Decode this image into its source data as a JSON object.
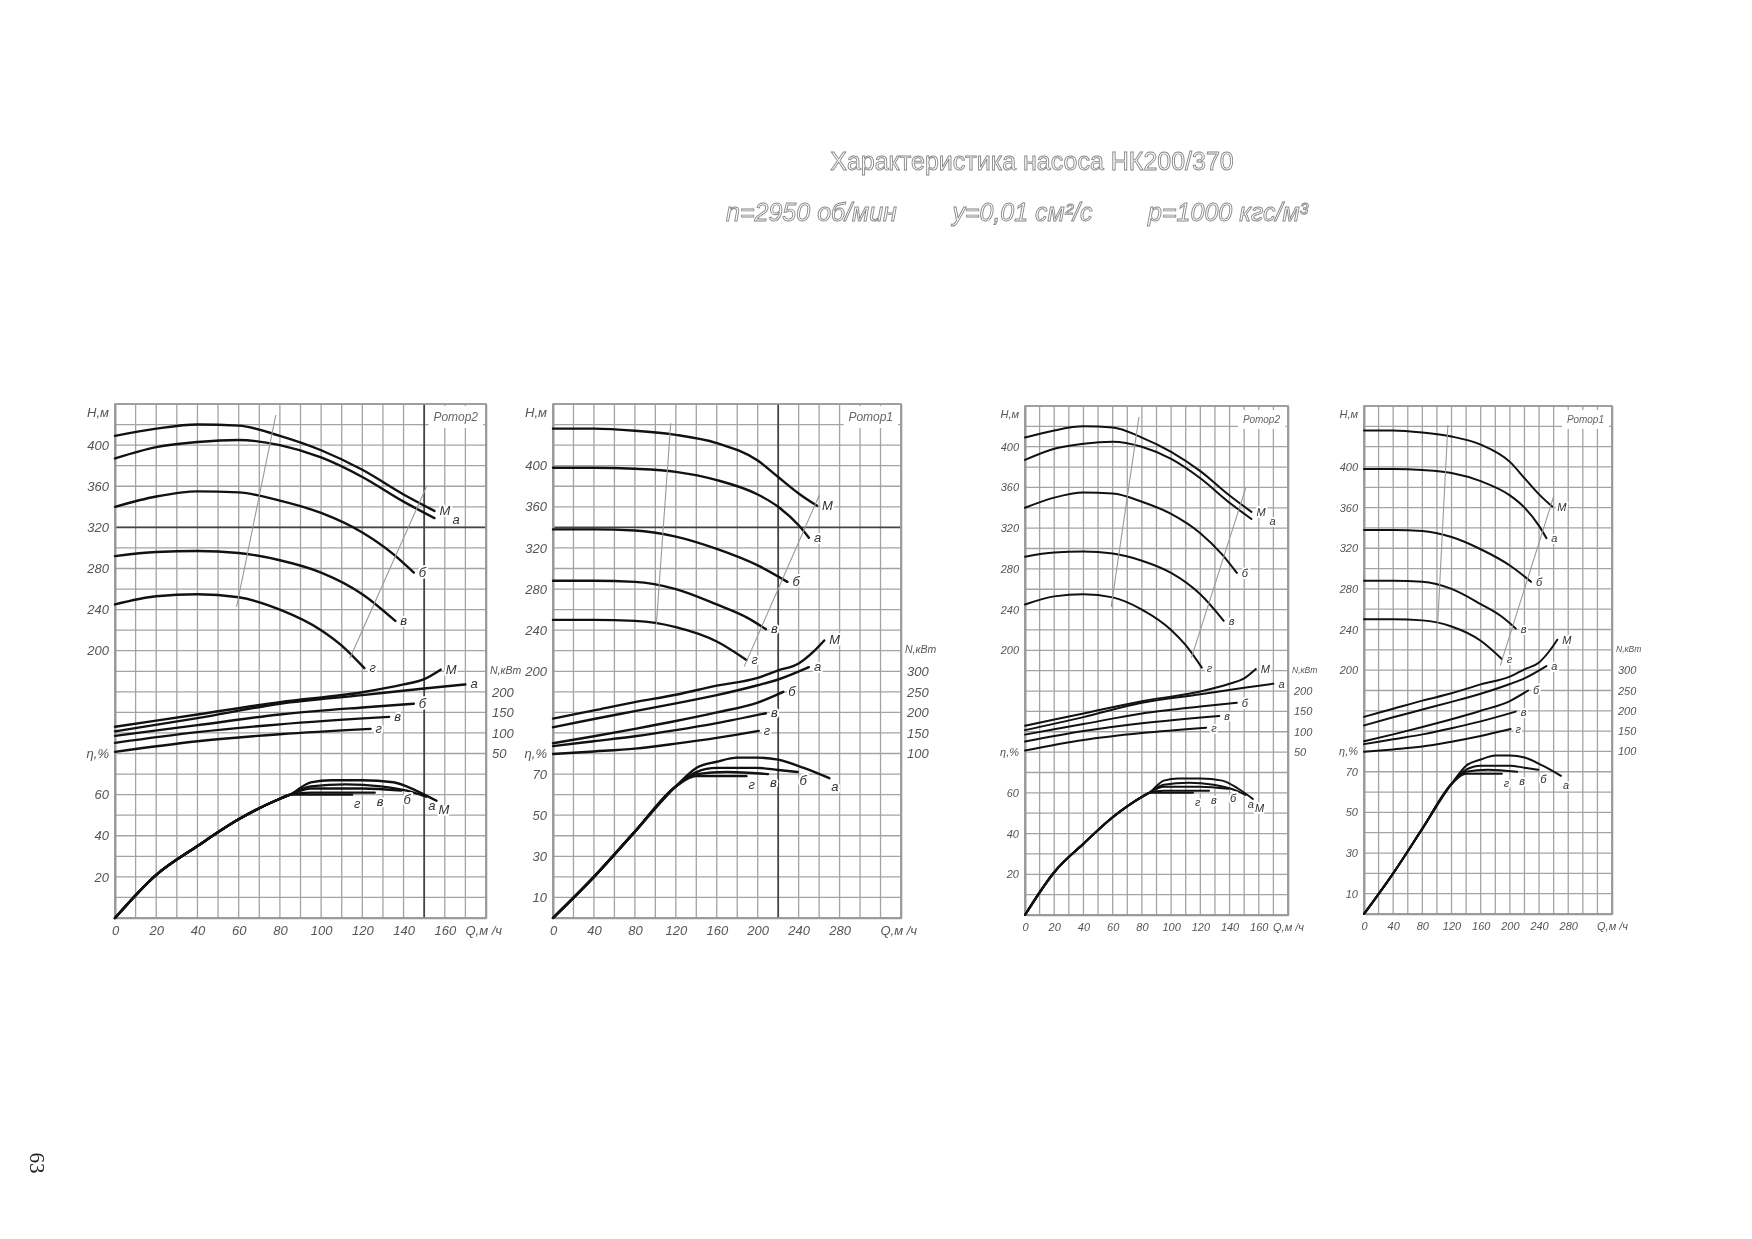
{
  "chart_data": [
    {
      "type": "line",
      "xlabel": "Q,м /ч",
      "ylabel": "H,м",
      "y2label": "N,кВт",
      "y3label": "η,%",
      "xlim": [
        0,
        180
      ],
      "xticks": [
        0,
        {
          "value": 10,
          "label": null
        },
        20,
        {
          "value": 30,
          "label": null
        },
        40,
        {
          "value": 50,
          "label": null
        },
        60,
        {
          "value": 70,
          "label": null
        },
        80,
        {
          "value": 90,
          "label": null
        },
        100,
        {
          "value": 110,
          "label": null
        },
        120,
        {
          "value": 130,
          "label": null
        },
        140,
        160,
        {
          "value": 170,
          "label": null
        },
        {
          "value": 180,
          "label": null
        }
      ],
      "ylim": [
        -60,
        440
      ],
      "yticks": [
        {
          "value": -60,
          "label": null
        },
        {
          "value": -40,
          "label": null
        },
        {
          "value": -20,
          "label": null
        },
        {
          "value": 0,
          "label": null
        },
        {
          "value": 20,
          "label": null
        },
        {
          "value": 40,
          "label": null
        },
        {
          "value": 60,
          "label": null
        },
        {
          "value": 80,
          "label": null
        },
        {
          "value": 100,
          "label": null
        },
        {
          "value": 120,
          "label": null
        },
        {
          "value": 140,
          "label": null
        },
        {
          "value": 160,
          "label": null
        },
        {
          "value": 180,
          "label": null
        },
        200,
        {
          "value": 220,
          "label": null
        },
        240,
        {
          "value": 260,
          "label": null
        },
        280,
        {
          "value": 300,
          "label": null
        },
        320,
        {
          "value": 340,
          "label": null
        },
        360,
        {
          "value": 380,
          "label": null
        },
        400,
        {
          "value": 420,
          "label": null
        },
        {
          "value": 440,
          "label": null
        }
      ],
      "y2lim": [
        -350,
        900
      ],
      "y2ticks": [
        50,
        100,
        150,
        200
      ],
      "y3lim": [
        0,
        250
      ],
      "y3ticks": [
        20,
        40,
        60
      ],
      "grid": true,
      "ref_lines": [
        {
          "axis": "x",
          "value": 150,
          "color": "#444444"
        },
        {
          "axis": "y",
          "value": 320,
          "color": "#444444"
        }
      ],
      "annotations": [
        "Ротор2",
        "63"
      ],
      "series": [
        {
          "name": "М",
          "color": "#111111",
          "x": [
            0,
            20,
            40,
            60,
            80,
            100,
            120,
            140,
            155
          ],
          "values": [
            409,
            416,
            420,
            419,
            409,
            395,
            376,
            352,
            336
          ]
        },
        {
          "name": "а",
          "color": "#111111",
          "x": [
            0,
            20,
            40,
            60,
            80,
            100,
            120,
            140,
            155
          ],
          "values": [
            387,
            398,
            403,
            405,
            400,
            388,
            369,
            345,
            329
          ]
        },
        {
          "name": "б",
          "color": "#111111",
          "x": [
            0,
            20,
            40,
            60,
            80,
            100,
            120,
            135,
            145
          ],
          "values": [
            340,
            350,
            355,
            354,
            346,
            334,
            315,
            294,
            276
          ]
        },
        {
          "name": "в",
          "color": "#111111",
          "x": [
            0,
            20,
            40,
            60,
            80,
            100,
            120,
            136
          ],
          "values": [
            292,
            296,
            297,
            295,
            288,
            276,
            255,
            229
          ]
        },
        {
          "name": "г",
          "color": "#111111",
          "x": [
            0,
            20,
            40,
            60,
            80,
            100,
            110,
            121
          ],
          "values": [
            245,
            253,
            255,
            252,
            240,
            220,
            205,
            183
          ]
        },
        {
          "name": "М",
          "color": "#111111",
          "axis": "y2",
          "x": [
            0,
            40,
            80,
            120,
            140,
            150,
            158
          ],
          "values": [
            115,
            145,
            175,
            199,
            218,
            231,
            254
          ]
        },
        {
          "name": "а",
          "color": "#111111",
          "axis": "y2",
          "x": [
            0,
            40,
            80,
            120,
            150,
            170
          ],
          "values": [
            104,
            136,
            171,
            192,
            208,
            218
          ]
        },
        {
          "name": "б",
          "color": "#111111",
          "axis": "y2",
          "x": [
            0,
            40,
            80,
            120,
            145
          ],
          "values": [
            93,
            119,
            145,
            162,
            171
          ]
        },
        {
          "name": "в",
          "color": "#111111",
          "axis": "y2",
          "x": [
            0,
            40,
            80,
            133
          ],
          "values": [
            76,
            102,
            121,
            139
          ]
        },
        {
          "name": "г",
          "color": "#111111",
          "axis": "y2",
          "x": [
            0,
            40,
            80,
            124
          ],
          "values": [
            54,
            80,
            97,
            110
          ]
        },
        {
          "name": "М",
          "color": "#111111",
          "axis": "y3",
          "x": [
            0,
            20,
            40,
            60,
            80,
            85,
            95,
            105,
            120,
            135,
            146,
            156
          ],
          "values": [
            0,
            21,
            35,
            48,
            58,
            60,
            66,
            67,
            67,
            66,
            62,
            57
          ]
        },
        {
          "name": "а",
          "color": "#111111",
          "axis": "y3",
          "x": [
            0,
            20,
            40,
            60,
            80,
            85,
            95,
            112,
            129,
            145,
            151
          ],
          "values": [
            0,
            21,
            35,
            48,
            58,
            60,
            64,
            65,
            64,
            61,
            59
          ]
        },
        {
          "name": "б",
          "color": "#111111",
          "axis": "y3",
          "x": [
            0,
            20,
            40,
            60,
            80,
            85,
            95,
            120,
            139
          ],
          "values": [
            0,
            21,
            35,
            48,
            58,
            60,
            63,
            63,
            62
          ]
        },
        {
          "name": "в",
          "color": "#111111",
          "axis": "y3",
          "x": [
            0,
            20,
            40,
            60,
            80,
            85,
            95,
            126
          ],
          "values": [
            0,
            21,
            35,
            48,
            58,
            60,
            61,
            61
          ]
        },
        {
          "name": "г",
          "color": "#111111",
          "axis": "y3",
          "x": [
            0,
            20,
            40,
            60,
            80,
            85,
            95,
            115
          ],
          "values": [
            0,
            21,
            35,
            48,
            58,
            60,
            60,
            60
          ]
        },
        {
          "color": "#9a9a9a",
          "x": [
            59,
            78
          ],
          "values": [
            243,
            429
          ]
        },
        {
          "color": "#9a9a9a",
          "x": [
            114,
            151
          ],
          "values": [
            193,
            359
          ]
        }
      ]
    },
    {
      "type": "line",
      "xlabel": "Q,м /ч",
      "ylabel": "H,м",
      "y2label": "N,кВт",
      "y3label": "η,%",
      "xlim": [
        0,
        340
      ],
      "xticks": [
        0,
        {
          "value": 20,
          "label": null
        },
        40,
        {
          "value": 60,
          "label": null
        },
        80,
        {
          "value": 100,
          "label": null
        },
        120,
        {
          "value": 140,
          "label": null
        },
        160,
        {
          "value": 180,
          "label": null
        },
        200,
        240,
        {
          "value": 260,
          "label": null
        },
        280,
        {
          "value": 300,
          "label": null
        },
        {
          "value": 320,
          "label": null
        },
        {
          "value": 340,
          "label": null
        }
      ],
      "ylim": [
        -40,
        460
      ],
      "yticks": [
        {
          "value": -40,
          "label": null
        },
        {
          "value": -20,
          "label": null
        },
        {
          "value": 0,
          "label": null
        },
        {
          "value": 20,
          "label": null
        },
        {
          "value": 40,
          "label": null
        },
        {
          "value": 60,
          "label": null
        },
        {
          "value": 80,
          "label": null
        },
        {
          "value": 100,
          "label": null
        },
        {
          "value": 120,
          "label": null
        },
        {
          "value": 140,
          "label": null
        },
        {
          "value": 160,
          "label": null
        },
        {
          "value": 180,
          "label": null
        },
        200,
        {
          "value": 220,
          "label": null
        },
        240,
        {
          "value": 260,
          "label": null
        },
        280,
        {
          "value": 300,
          "label": null
        },
        320,
        360,
        {
          "value": 380,
          "label": null
        },
        400,
        {
          "value": 420,
          "label": null
        },
        {
          "value": 440,
          "label": null
        },
        {
          "value": 460,
          "label": null
        }
      ],
      "y2lim": [
        -300,
        950
      ],
      "y2ticks": [
        100,
        150,
        200,
        250,
        300
      ],
      "y3lim": [
        0,
        250
      ],
      "y3ticks": [
        10,
        30,
        50,
        70
      ],
      "grid": true,
      "ref_lines": [
        {
          "axis": "x",
          "value": 220,
          "color": "#444444"
        },
        {
          "axis": "y",
          "value": 340,
          "color": "#444444"
        }
      ],
      "annotations": [
        "Ротор1"
      ],
      "series": [
        {
          "name": "М",
          "color": "#111111",
          "x": [
            0,
            40,
            80,
            120,
            160,
            200,
            220,
            240,
            258
          ],
          "values": [
            436,
            436,
            434,
            430,
            422,
            405,
            389,
            373,
            361
          ]
        },
        {
          "name": "а",
          "color": "#111111",
          "x": [
            0,
            40,
            80,
            120,
            160,
            200,
            220,
            240,
            250
          ],
          "values": [
            398,
            398,
            397,
            394,
            386,
            372,
            360,
            342,
            330
          ]
        },
        {
          "name": "б",
          "color": "#111111",
          "x": [
            0,
            40,
            80,
            120,
            160,
            200,
            229
          ],
          "values": [
            338,
            338,
            337,
            331,
            319,
            303,
            287
          ]
        },
        {
          "name": "в",
          "color": "#111111",
          "x": [
            0,
            40,
            80,
            120,
            160,
            190,
            208
          ],
          "values": [
            288,
            288,
            287,
            280,
            265,
            252,
            241
          ]
        },
        {
          "name": "г",
          "color": "#111111",
          "x": [
            0,
            40,
            80,
            120,
            160,
            189
          ],
          "values": [
            250,
            250,
            249,
            243,
            229,
            211
          ]
        },
        {
          "name": "М",
          "color": "#111111",
          "axis": "y2",
          "x": [
            0,
            40,
            80,
            120,
            160,
            200,
            220,
            240,
            255,
            265
          ],
          "values": [
            185,
            205,
            225,
            243,
            265,
            284,
            302,
            319,
            349,
            375
          ]
        },
        {
          "name": "а",
          "color": "#111111",
          "axis": "y2",
          "x": [
            0,
            40,
            80,
            120,
            160,
            200,
            220,
            250
          ],
          "values": [
            164,
            184,
            203,
            222,
            242,
            266,
            280,
            310
          ]
        },
        {
          "name": "б",
          "color": "#111111",
          "axis": "y2",
          "x": [
            0,
            40,
            80,
            120,
            160,
            200,
            225
          ],
          "values": [
            125,
            142,
            160,
            179,
            200,
            224,
            250
          ]
        },
        {
          "name": "в",
          "color": "#111111",
          "axis": "y2",
          "x": [
            0,
            40,
            80,
            120,
            160,
            208
          ],
          "values": [
            118,
            130,
            142,
            157,
            174,
            198
          ]
        },
        {
          "name": "г",
          "color": "#111111",
          "axis": "y2",
          "x": [
            0,
            40,
            80,
            120,
            160,
            201
          ],
          "values": [
            99,
            105,
            112,
            124,
            138,
            155
          ]
        },
        {
          "name": "а",
          "color": "#111111",
          "axis": "y3",
          "x": [
            0,
            40,
            80,
            120,
            140,
            160,
            180,
            200,
            220,
            245,
            270
          ],
          "values": [
            0,
            20,
            42,
            64,
            73,
            76,
            78,
            78,
            77,
            73,
            68
          ]
        },
        {
          "name": "б",
          "color": "#111111",
          "axis": "y3",
          "x": [
            0,
            40,
            80,
            120,
            140,
            160,
            200,
            220,
            239
          ],
          "values": [
            0,
            20,
            42,
            64,
            71,
            73,
            73,
            72,
            71
          ]
        },
        {
          "name": "в",
          "color": "#111111",
          "axis": "y3",
          "x": [
            0,
            40,
            80,
            120,
            140,
            170,
            210
          ],
          "values": [
            0,
            20,
            42,
            64,
            70,
            71,
            70
          ]
        },
        {
          "name": "г",
          "color": "#111111",
          "axis": "y3",
          "x": [
            0,
            40,
            80,
            120,
            140,
            189
          ],
          "values": [
            0,
            20,
            42,
            64,
            69,
            69
          ]
        },
        {
          "color": "#9a9a9a",
          "x": [
            101,
            115
          ],
          "values": [
            246,
            441
          ]
        },
        {
          "color": "#9a9a9a",
          "x": [
            187,
            260
          ],
          "values": [
            205,
            371
          ]
        }
      ]
    },
    {
      "type": "line",
      "title": "Характеристика насоса НК200/370",
      "subtitle": "n=2950 об/мин        у=0,01 см²/с        р=1000 кгс/м³",
      "xlabel": "Q,м /ч",
      "ylabel": "H,м",
      "y2label": "N,кВт",
      "y3label": "η,%",
      "xlim": [
        0,
        180
      ],
      "xticks": [
        0,
        {
          "value": 10,
          "label": null
        },
        20,
        {
          "value": 30,
          "label": null
        },
        40,
        {
          "value": 50,
          "label": null
        },
        60,
        {
          "value": 70,
          "label": null
        },
        80,
        {
          "value": 90,
          "label": null
        },
        100,
        {
          "value": 110,
          "label": null
        },
        120,
        {
          "value": 130,
          "label": null
        },
        140,
        {
          "value": 150,
          "label": null
        },
        160,
        {
          "value": 170,
          "label": null
        },
        {
          "value": 180,
          "label": null
        }
      ],
      "ylim": [
        -60,
        440
      ],
      "yticks": [
        {
          "value": -60,
          "label": null
        },
        {
          "value": -40,
          "label": null
        },
        {
          "value": -20,
          "label": null
        },
        {
          "value": 0,
          "label": null
        },
        {
          "value": 20,
          "label": null
        },
        {
          "value": 40,
          "label": null
        },
        {
          "value": 60,
          "label": null
        },
        {
          "value": 80,
          "label": null
        },
        {
          "value": 100,
          "label": null
        },
        {
          "value": 120,
          "label": null
        },
        {
          "value": 140,
          "label": null
        },
        {
          "value": 160,
          "label": null
        },
        {
          "value": 180,
          "label": null
        },
        200,
        {
          "value": 220,
          "label": null
        },
        240,
        {
          "value": 260,
          "label": null
        },
        280,
        {
          "value": 300,
          "label": null
        },
        320,
        {
          "value": 340,
          "label": null
        },
        360,
        {
          "value": 380,
          "label": null
        },
        400,
        {
          "value": 420,
          "label": null
        },
        {
          "value": 440,
          "label": null
        }
      ],
      "y2lim": [
        -350,
        900
      ],
      "y2ticks": [
        50,
        100,
        150,
        200
      ],
      "y3lim": [
        0,
        250
      ],
      "y3ticks": [
        20,
        40,
        60
      ],
      "grid": true,
      "annotations": [
        "Ротор2"
      ],
      "series": [
        {
          "name": "М",
          "color": "#111111",
          "x": [
            0,
            20,
            40,
            60,
            80,
            100,
            120,
            140,
            155
          ],
          "values": [
            409,
            416,
            420,
            419,
            409,
            395,
            376,
            352,
            336
          ]
        },
        {
          "name": "а",
          "color": "#111111",
          "x": [
            0,
            20,
            40,
            60,
            80,
            100,
            120,
            140,
            155
          ],
          "values": [
            387,
            398,
            403,
            405,
            400,
            388,
            369,
            345,
            329
          ]
        },
        {
          "name": "б",
          "color": "#111111",
          "x": [
            0,
            20,
            40,
            60,
            80,
            100,
            120,
            135,
            145
          ],
          "values": [
            340,
            350,
            355,
            354,
            346,
            334,
            315,
            294,
            276
          ]
        },
        {
          "name": "в",
          "color": "#111111",
          "x": [
            0,
            20,
            40,
            60,
            80,
            100,
            120,
            136
          ],
          "values": [
            292,
            296,
            297,
            295,
            288,
            276,
            255,
            229
          ]
        },
        {
          "name": "г",
          "color": "#111111",
          "x": [
            0,
            20,
            40,
            60,
            80,
            100,
            110,
            121
          ],
          "values": [
            245,
            253,
            255,
            252,
            240,
            220,
            205,
            183
          ]
        },
        {
          "name": "М",
          "color": "#111111",
          "axis": "y2",
          "x": [
            0,
            40,
            80,
            120,
            140,
            150,
            158
          ],
          "values": [
            115,
            145,
            175,
            199,
            218,
            231,
            254
          ]
        },
        {
          "name": "а",
          "color": "#111111",
          "axis": "y2",
          "x": [
            0,
            40,
            80,
            120,
            150,
            170
          ],
          "values": [
            104,
            136,
            171,
            192,
            208,
            218
          ]
        },
        {
          "name": "б",
          "color": "#111111",
          "axis": "y2",
          "x": [
            0,
            40,
            80,
            120,
            145
          ],
          "values": [
            93,
            119,
            145,
            162,
            171
          ]
        },
        {
          "name": "в",
          "color": "#111111",
          "axis": "y2",
          "x": [
            0,
            40,
            80,
            133
          ],
          "values": [
            76,
            102,
            121,
            139
          ]
        },
        {
          "name": "г",
          "color": "#111111",
          "axis": "y2",
          "x": [
            0,
            40,
            80,
            124
          ],
          "values": [
            54,
            80,
            97,
            110
          ]
        },
        {
          "name": "М",
          "color": "#111111",
          "axis": "y3",
          "x": [
            0,
            20,
            40,
            60,
            80,
            85,
            95,
            105,
            120,
            135,
            146,
            156
          ],
          "values": [
            0,
            21,
            35,
            48,
            58,
            60,
            66,
            67,
            67,
            66,
            62,
            57
          ]
        },
        {
          "name": "а",
          "color": "#111111",
          "axis": "y3",
          "x": [
            0,
            20,
            40,
            60,
            80,
            85,
            95,
            112,
            129,
            145,
            151
          ],
          "values": [
            0,
            21,
            35,
            48,
            58,
            60,
            64,
            65,
            64,
            61,
            59
          ]
        },
        {
          "name": "б",
          "color": "#111111",
          "axis": "y3",
          "x": [
            0,
            20,
            40,
            60,
            80,
            85,
            95,
            120,
            139
          ],
          "values": [
            0,
            21,
            35,
            48,
            58,
            60,
            63,
            63,
            62
          ]
        },
        {
          "name": "в",
          "color": "#111111",
          "axis": "y3",
          "x": [
            0,
            20,
            40,
            60,
            80,
            85,
            95,
            126
          ],
          "values": [
            0,
            21,
            35,
            48,
            58,
            60,
            61,
            61
          ]
        },
        {
          "name": "г",
          "color": "#111111",
          "axis": "y3",
          "x": [
            0,
            20,
            40,
            60,
            80,
            85,
            95,
            115
          ],
          "values": [
            0,
            21,
            35,
            48,
            58,
            60,
            60,
            60
          ]
        },
        {
          "color": "#9a9a9a",
          "x": [
            59,
            78
          ],
          "values": [
            243,
            429
          ]
        },
        {
          "color": "#9a9a9a",
          "x": [
            114,
            151
          ],
          "values": [
            193,
            359
          ]
        }
      ]
    },
    {
      "type": "line",
      "xlabel": "Q,м /ч",
      "ylabel": "H,м",
      "y2label": "N,кВт",
      "y3label": "η,%",
      "xlim": [
        0,
        340
      ],
      "xticks": [
        0,
        {
          "value": 20,
          "label": null
        },
        40,
        {
          "value": 60,
          "label": null
        },
        80,
        {
          "value": 100,
          "label": null
        },
        120,
        {
          "value": 140,
          "label": null
        },
        160,
        {
          "value": 180,
          "label": null
        },
        200,
        {
          "value": 220,
          "label": null
        },
        240,
        {
          "value": 260,
          "label": null
        },
        280,
        {
          "value": 300,
          "label": null
        },
        {
          "value": 320,
          "label": null
        },
        {
          "value": 340,
          "label": null
        }
      ],
      "ylim": [
        -40,
        460
      ],
      "yticks": [
        {
          "value": -40,
          "label": null
        },
        {
          "value": -20,
          "label": null
        },
        {
          "value": 0,
          "label": null
        },
        {
          "value": 20,
          "label": null
        },
        {
          "value": 40,
          "label": null
        },
        {
          "value": 60,
          "label": null
        },
        {
          "value": 80,
          "label": null
        },
        {
          "value": 100,
          "label": null
        },
        {
          "value": 120,
          "label": null
        },
        {
          "value": 140,
          "label": null
        },
        {
          "value": 160,
          "label": null
        },
        {
          "value": 180,
          "label": null
        },
        200,
        {
          "value": 220,
          "label": null
        },
        240,
        {
          "value": 260,
          "label": null
        },
        280,
        {
          "value": 300,
          "label": null
        },
        320,
        {
          "value": 340,
          "label": null
        },
        360,
        {
          "value": 380,
          "label": null
        },
        400,
        {
          "value": 420,
          "label": null
        },
        {
          "value": 440,
          "label": null
        },
        {
          "value": 460,
          "label": null
        }
      ],
      "y2lim": [
        -300,
        950
      ],
      "y2ticks": [
        100,
        150,
        200,
        250,
        300
      ],
      "y3lim": [
        0,
        250
      ],
      "y3ticks": [
        10,
        30,
        50,
        70
      ],
      "grid": true,
      "annotations": [
        "Ротор1"
      ],
      "series": [
        {
          "name": "М",
          "color": "#111111",
          "x": [
            0,
            40,
            80,
            120,
            160,
            200,
            220,
            240,
            258
          ],
          "values": [
            436,
            436,
            434,
            430,
            422,
            405,
            389,
            373,
            361
          ]
        },
        {
          "name": "а",
          "color": "#111111",
          "x": [
            0,
            40,
            80,
            120,
            160,
            200,
            220,
            240,
            250
          ],
          "values": [
            398,
            398,
            397,
            394,
            386,
            372,
            360,
            342,
            330
          ]
        },
        {
          "name": "б",
          "color": "#111111",
          "x": [
            0,
            40,
            80,
            120,
            160,
            200,
            229
          ],
          "values": [
            338,
            338,
            337,
            331,
            319,
            303,
            287
          ]
        },
        {
          "name": "в",
          "color": "#111111",
          "x": [
            0,
            40,
            80,
            120,
            160,
            190,
            208
          ],
          "values": [
            288,
            288,
            287,
            280,
            265,
            252,
            241
          ]
        },
        {
          "name": "г",
          "color": "#111111",
          "x": [
            0,
            40,
            80,
            120,
            160,
            189
          ],
          "values": [
            250,
            250,
            249,
            243,
            229,
            211
          ]
        },
        {
          "name": "М",
          "color": "#111111",
          "axis": "y2",
          "x": [
            0,
            40,
            80,
            120,
            160,
            200,
            220,
            240,
            255,
            265
          ],
          "values": [
            185,
            205,
            225,
            243,
            265,
            284,
            302,
            319,
            349,
            375
          ]
        },
        {
          "name": "а",
          "color": "#111111",
          "axis": "y2",
          "x": [
            0,
            40,
            80,
            120,
            160,
            200,
            220,
            250
          ],
          "values": [
            164,
            184,
            203,
            222,
            242,
            266,
            280,
            310
          ]
        },
        {
          "name": "б",
          "color": "#111111",
          "axis": "y2",
          "x": [
            0,
            40,
            80,
            120,
            160,
            200,
            225
          ],
          "values": [
            125,
            142,
            160,
            179,
            200,
            224,
            250
          ]
        },
        {
          "name": "в",
          "color": "#111111",
          "axis": "y2",
          "x": [
            0,
            40,
            80,
            120,
            160,
            208
          ],
          "values": [
            118,
            130,
            142,
            157,
            174,
            198
          ]
        },
        {
          "name": "г",
          "color": "#111111",
          "axis": "y2",
          "x": [
            0,
            40,
            80,
            120,
            160,
            201
          ],
          "values": [
            99,
            105,
            112,
            124,
            138,
            155
          ]
        },
        {
          "name": "а",
          "color": "#111111",
          "axis": "y3",
          "x": [
            0,
            40,
            80,
            120,
            140,
            160,
            180,
            200,
            220,
            245,
            270
          ],
          "values": [
            0,
            20,
            42,
            64,
            73,
            76,
            78,
            78,
            77,
            73,
            68
          ]
        },
        {
          "name": "б",
          "color": "#111111",
          "axis": "y3",
          "x": [
            0,
            40,
            80,
            120,
            140,
            160,
            200,
            220,
            239
          ],
          "values": [
            0,
            20,
            42,
            64,
            71,
            73,
            73,
            72,
            71
          ]
        },
        {
          "name": "в",
          "color": "#111111",
          "axis": "y3",
          "x": [
            0,
            40,
            80,
            120,
            140,
            170,
            210
          ],
          "values": [
            0,
            20,
            42,
            64,
            70,
            71,
            70
          ]
        },
        {
          "name": "г",
          "color": "#111111",
          "axis": "y3",
          "x": [
            0,
            40,
            80,
            120,
            140,
            189
          ],
          "values": [
            0,
            20,
            42,
            64,
            69,
            69
          ]
        },
        {
          "color": "#9a9a9a",
          "x": [
            101,
            115
          ],
          "values": [
            246,
            441
          ]
        },
        {
          "color": "#9a9a9a",
          "x": [
            187,
            260
          ],
          "values": [
            205,
            371
          ]
        }
      ]
    }
  ]
}
